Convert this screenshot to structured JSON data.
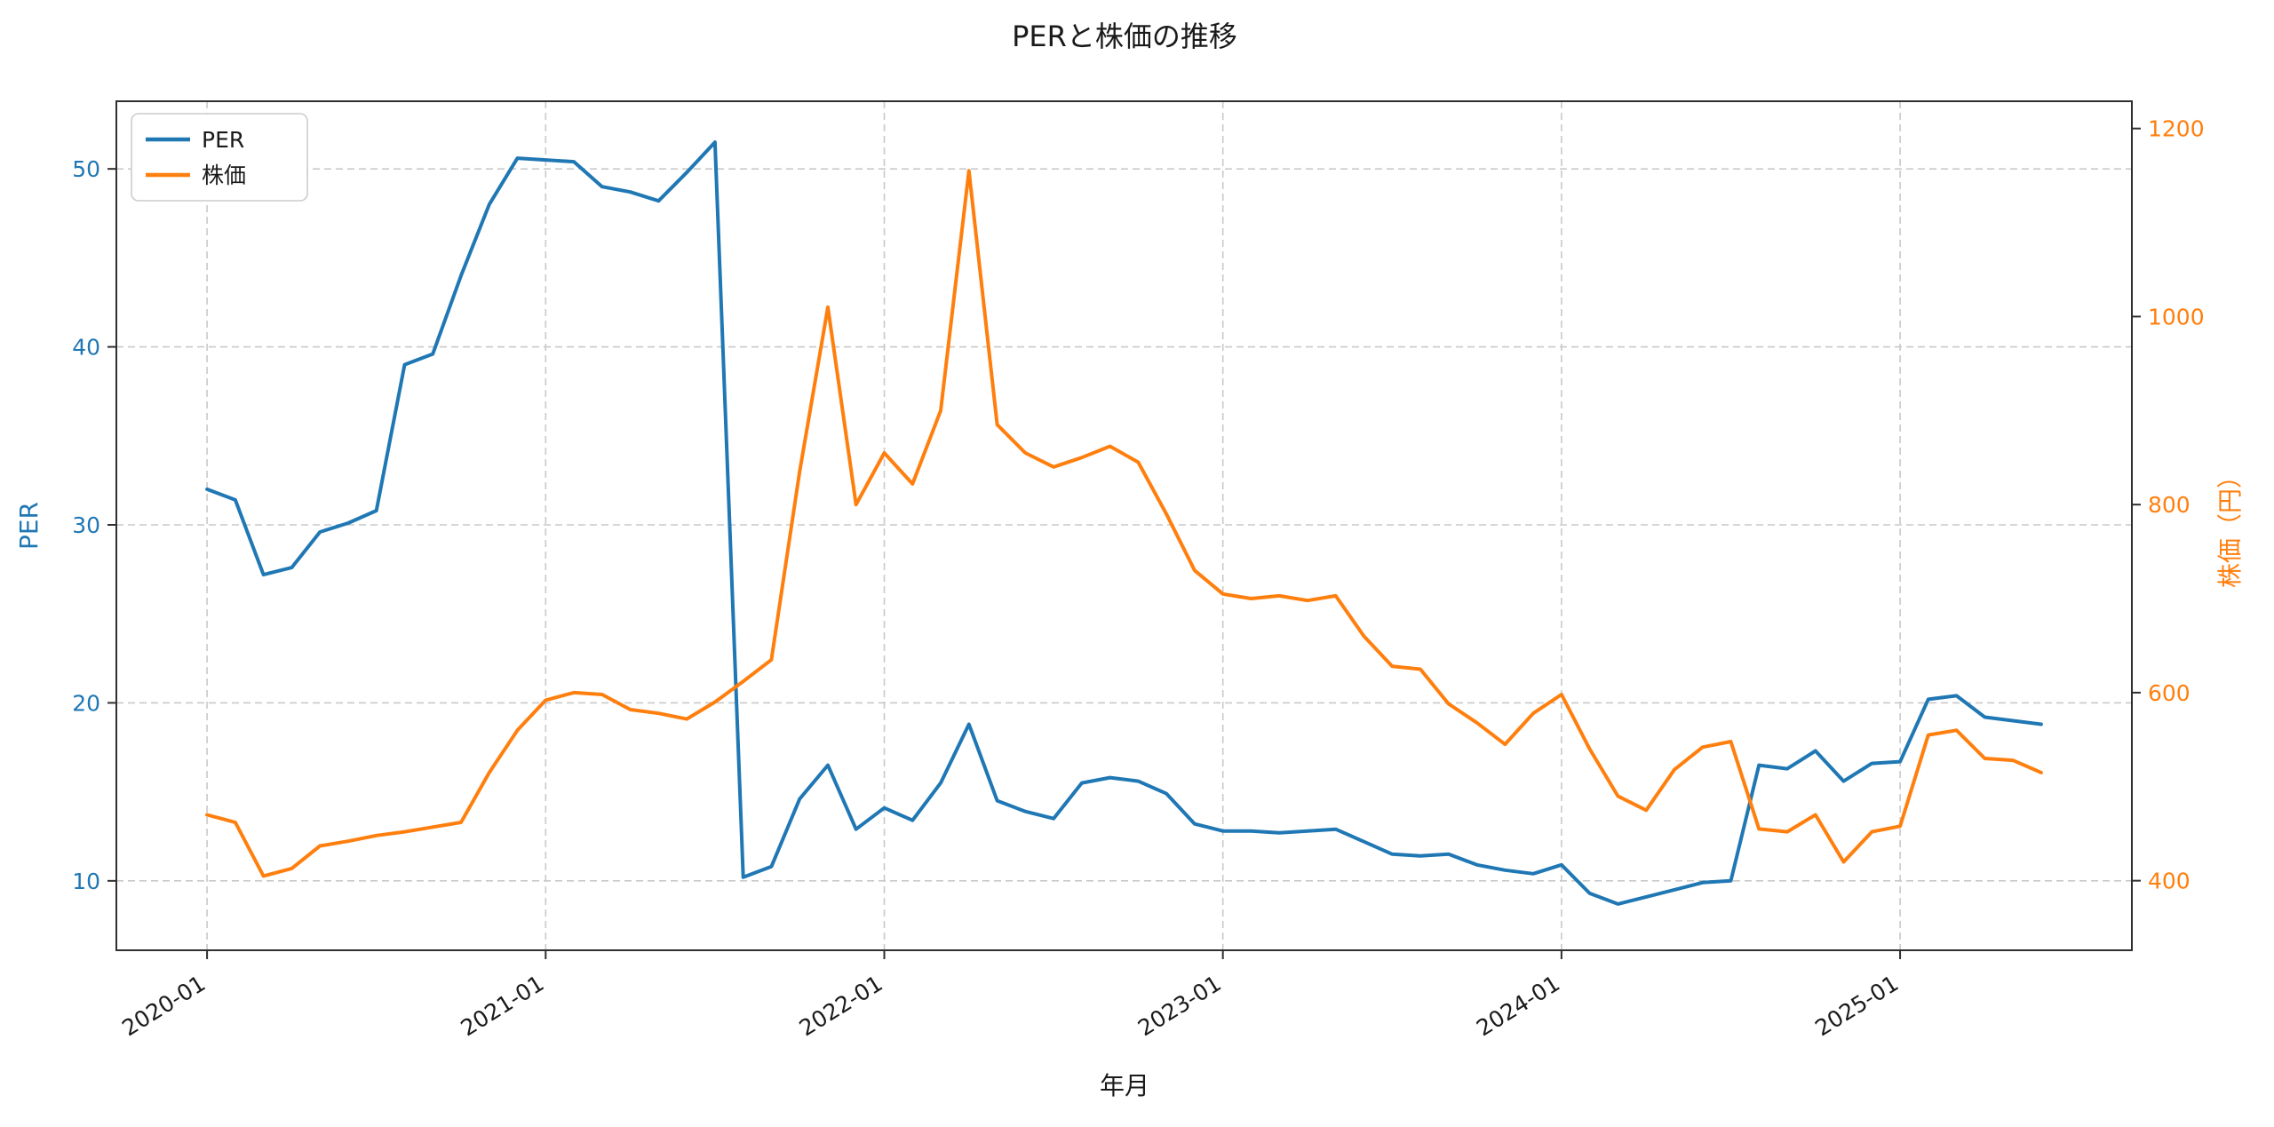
{
  "chart_data": {
    "type": "line",
    "title": "PERと株価の推移",
    "xlabel": "年月",
    "grid": true,
    "x": [
      "2020-01",
      "2020-02",
      "2020-03",
      "2020-04",
      "2020-05",
      "2020-06",
      "2020-07",
      "2020-08",
      "2020-09",
      "2020-10",
      "2020-11",
      "2020-12",
      "2021-01",
      "2021-02",
      "2021-03",
      "2021-04",
      "2021-05",
      "2021-06",
      "2021-07",
      "2021-08",
      "2021-09",
      "2021-10",
      "2021-11",
      "2021-12",
      "2022-01",
      "2022-02",
      "2022-03",
      "2022-04",
      "2022-05",
      "2022-06",
      "2022-07",
      "2022-08",
      "2022-09",
      "2022-10",
      "2022-11",
      "2022-12",
      "2023-01",
      "2023-02",
      "2023-03",
      "2023-04",
      "2023-05",
      "2023-06",
      "2023-07",
      "2023-08",
      "2023-09",
      "2023-10",
      "2023-11",
      "2023-12",
      "2024-01",
      "2024-02",
      "2024-03",
      "2024-04",
      "2024-05",
      "2024-06",
      "2024-07",
      "2024-08",
      "2024-09",
      "2024-10",
      "2024-11",
      "2024-12",
      "2025-01",
      "2025-02",
      "2025-03",
      "2025-04",
      "2025-05",
      "2025-06"
    ],
    "x_tick_labels": [
      "2020-01",
      "2021-01",
      "2022-01",
      "2023-01",
      "2024-01",
      "2025-01"
    ],
    "x_tick_indices": [
      0,
      12,
      24,
      36,
      48,
      60
    ],
    "series": [
      {
        "name": "PER",
        "axis": "left",
        "color": "#1f77b4",
        "values": [
          32.0,
          31.4,
          27.2,
          27.6,
          29.6,
          30.1,
          30.8,
          39.0,
          39.6,
          44.0,
          48.0,
          50.6,
          50.5,
          50.4,
          49.0,
          48.7,
          48.2,
          49.8,
          51.5,
          10.2,
          10.8,
          14.6,
          16.5,
          12.9,
          14.1,
          13.4,
          15.5,
          18.8,
          14.5,
          13.9,
          13.5,
          15.5,
          15.8,
          15.6,
          14.9,
          13.2,
          12.8,
          12.8,
          12.7,
          12.8,
          12.9,
          12.2,
          11.5,
          11.4,
          11.5,
          10.9,
          10.6,
          10.4,
          10.9,
          9.3,
          8.7,
          9.1,
          9.5,
          9.9,
          10.0,
          16.5,
          16.3,
          17.3,
          15.6,
          16.6,
          16.7,
          20.2,
          20.4,
          19.2,
          19.0,
          18.8
        ]
      },
      {
        "name": "株価",
        "axis": "right",
        "color": "#ff7f0e",
        "values": [
          470,
          462,
          405,
          413,
          437,
          442,
          448,
          452,
          457,
          462,
          515,
          560,
          592,
          600,
          598,
          582,
          578,
          572,
          590,
          612,
          635,
          835,
          1010,
          800,
          855,
          822,
          900,
          1155,
          885,
          855,
          840,
          850,
          862,
          845,
          790,
          730,
          705,
          700,
          703,
          698,
          703,
          660,
          628,
          625,
          588,
          568,
          545,
          578,
          598,
          540,
          490,
          475,
          518,
          542,
          548,
          455,
          452,
          470,
          420,
          452,
          458,
          555,
          560,
          530,
          528,
          515
        ]
      }
    ],
    "left_axis": {
      "label": "PER",
      "color": "#1f77b4",
      "ticks": [
        10,
        20,
        30,
        40,
        50
      ],
      "range": [
        6.1,
        53.8
      ]
    },
    "right_axis": {
      "label": "株価（円）",
      "color": "#ff7f0e",
      "ticks": [
        400,
        600,
        800,
        1000,
        1200
      ],
      "range": [
        326,
        1229
      ]
    },
    "legend": {
      "position": "upper-left",
      "entries": [
        "PER",
        "株価"
      ]
    },
    "style": {
      "grid_color": "#c9c9c9",
      "spine_color": "#2f2f2f",
      "text_color": "#1a1a1a",
      "background": "#ffffff"
    }
  }
}
